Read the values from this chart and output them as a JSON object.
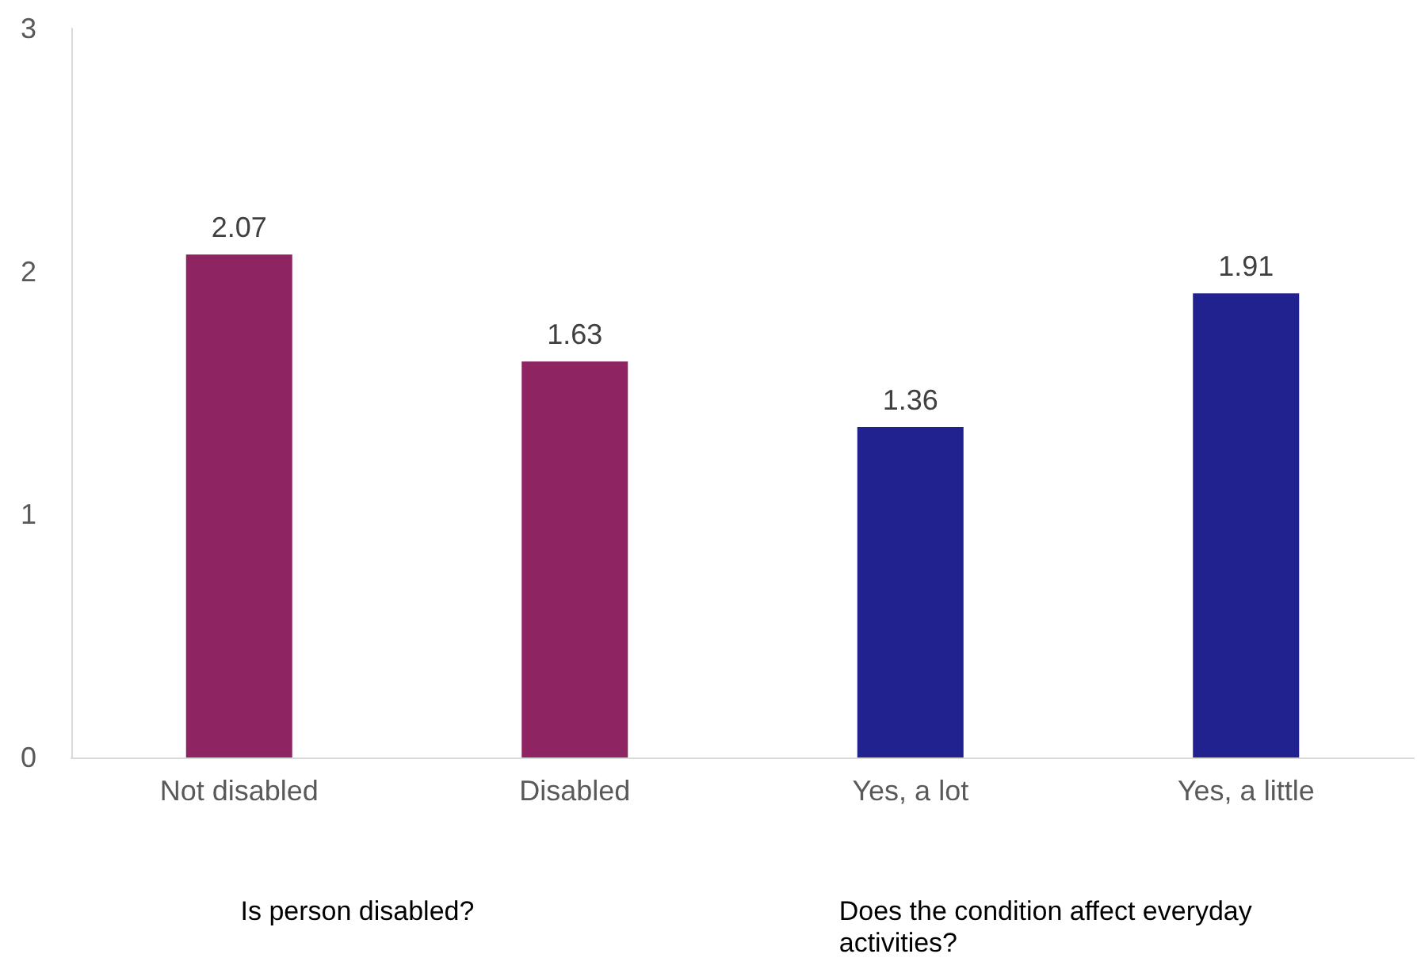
{
  "chart_data": {
    "type": "bar",
    "categories": [
      "Not disabled",
      "Disabled",
      "Yes, a lot",
      "Yes, a little"
    ],
    "values": [
      2.07,
      1.63,
      1.36,
      1.91
    ],
    "colors": [
      "#8e2562",
      "#8e2562",
      "#21218f",
      "#21218f"
    ],
    "ylim": [
      0,
      3
    ],
    "yticks": [
      0,
      1,
      2,
      3
    ],
    "grid": false,
    "data_labels": true,
    "annotations": [
      "Is person disabled?",
      "Does the condition affect everyday activities?"
    ]
  }
}
